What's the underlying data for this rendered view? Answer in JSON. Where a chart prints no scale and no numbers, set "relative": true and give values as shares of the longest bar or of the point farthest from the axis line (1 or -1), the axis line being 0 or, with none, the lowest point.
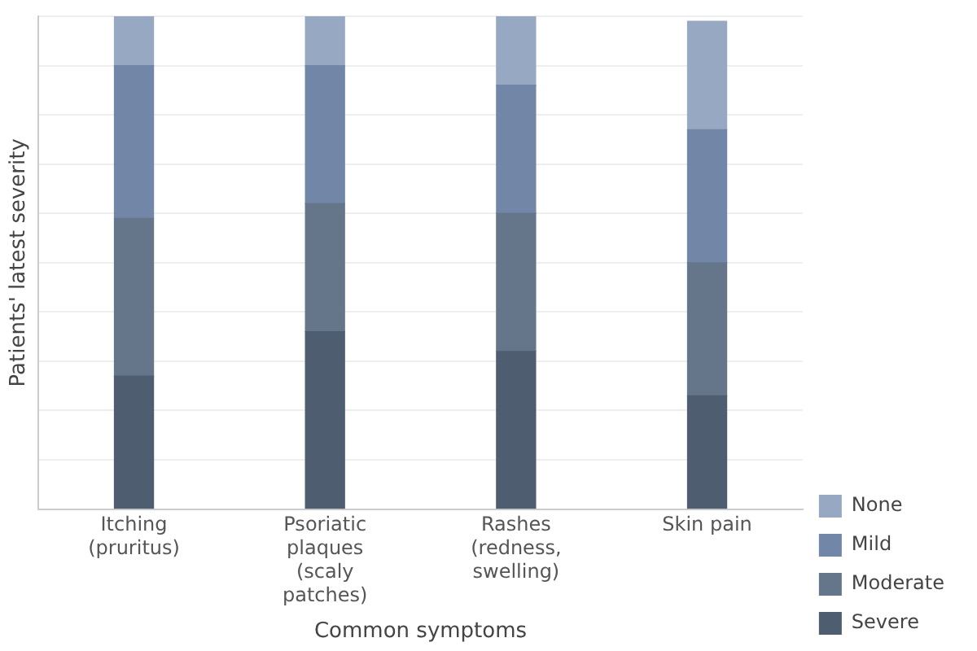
{
  "chart_data": {
    "type": "bar",
    "stacked": true,
    "relative": true,
    "xlabel": "Common symptoms",
    "ylabel": "Patients' latest severity",
    "categories": [
      "Itching (pruritus)",
      "Psoriatic plaques (scaly patches)",
      "Rashes (redness, swelling)",
      "Skin pain"
    ],
    "series": [
      {
        "name": "Severe",
        "color": "#4f5d70",
        "values": [
          0.27,
          0.36,
          0.32,
          0.23
        ]
      },
      {
        "name": "Moderate",
        "color": "#66768a",
        "values": [
          0.32,
          0.26,
          0.28,
          0.27
        ]
      },
      {
        "name": "Mild",
        "color": "#7287a8",
        "values": [
          0.31,
          0.28,
          0.26,
          0.27
        ]
      },
      {
        "name": "None",
        "color": "#97a9c2",
        "values": [
          0.1,
          0.1,
          0.14,
          0.22
        ]
      }
    ],
    "grid": "y",
    "legend": "right"
  }
}
